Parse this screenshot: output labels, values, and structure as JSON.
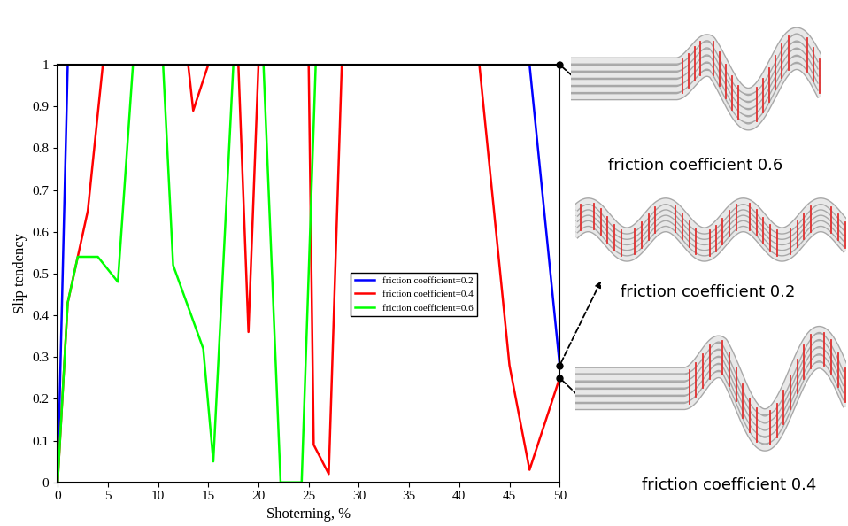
{
  "chart_data": {
    "type": "line",
    "x_label": "Shoterning, %",
    "y_label": "Slip tendency",
    "xlim": [
      0,
      50
    ],
    "ylim": [
      0,
      1
    ],
    "xticks": [
      0,
      5,
      10,
      15,
      20,
      25,
      30,
      35,
      40,
      45,
      50
    ],
    "yticks": [
      0,
      0.1,
      0.2,
      0.3,
      0.4,
      0.5,
      0.6,
      0.7,
      0.8,
      0.9,
      1
    ],
    "grid": false,
    "legend": "center",
    "series": [
      {
        "name": "friction coefficient=0.2",
        "color": "#0000ff",
        "x": [
          0,
          1,
          47,
          50
        ],
        "values": [
          0,
          1,
          1,
          0.28
        ]
      },
      {
        "name": "friction coefficient=0.4",
        "color": "#ff0000",
        "x": [
          0,
          1,
          3,
          4.5,
          13,
          13.5,
          15,
          18,
          19,
          20,
          25,
          25.5,
          27,
          28.3,
          42,
          45,
          47,
          50
        ],
        "values": [
          0,
          0.43,
          0.65,
          1,
          1,
          0.89,
          1,
          1,
          0.36,
          1,
          1,
          0.09,
          0.02,
          1,
          1,
          0.28,
          0.03,
          0.25
        ]
      },
      {
        "name": "friction coefficient=0.6",
        "color": "#00ff00",
        "x": [
          0,
          1,
          2,
          4,
          6,
          7.5,
          10.5,
          11.5,
          14.5,
          15.5,
          17.5,
          20.5,
          22.2,
          24.3,
          25.7,
          50
        ],
        "values": [
          0,
          0.43,
          0.54,
          0.54,
          0.48,
          1,
          1,
          0.52,
          0.32,
          0.05,
          1,
          1,
          0,
          0,
          1,
          1
        ]
      }
    ],
    "annotations": [
      "friction coefficient 0.6",
      "friction coefficient 0.2",
      "friction coefficient 0.4"
    ]
  }
}
